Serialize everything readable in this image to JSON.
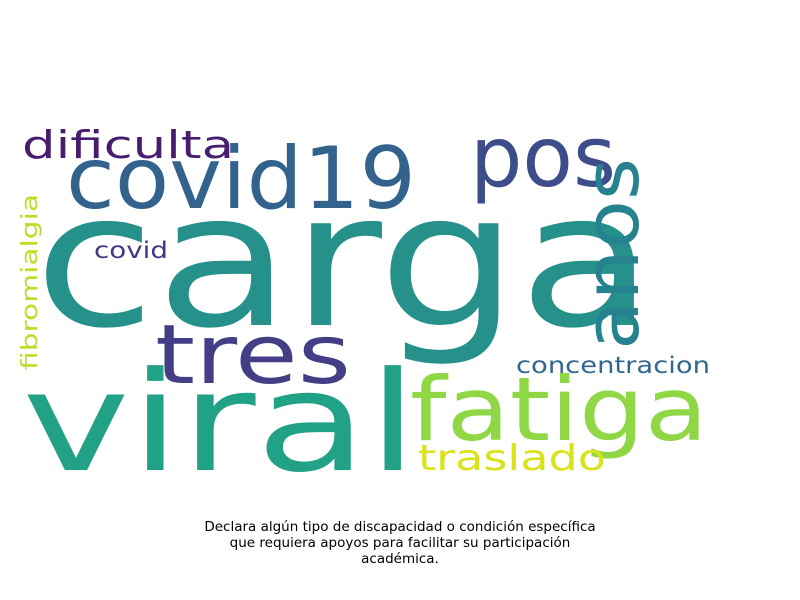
{
  "wordcloud": {
    "words": [
      {
        "text": "carga",
        "color": "#26918a"
      },
      {
        "text": "viral",
        "color": "#21a185"
      },
      {
        "text": "covid19",
        "color": "#33628d"
      },
      {
        "text": "pos",
        "color": "#3d4d8a"
      },
      {
        "text": "fatiga",
        "color": "#8fd744"
      },
      {
        "text": "tres",
        "color": "#433e85"
      },
      {
        "text": "anos",
        "color": "#26828e"
      },
      {
        "text": "dificulta",
        "color": "#481d6f"
      },
      {
        "text": "traslado",
        "color": "#dae319"
      },
      {
        "text": "concentracion",
        "color": "#31688e"
      },
      {
        "text": "covid",
        "color": "#453882"
      },
      {
        "text": "fibromialgia",
        "color": "#bade28"
      }
    ]
  },
  "caption": {
    "line1": "Declara algún tipo de discapacidad o condición específica",
    "line2": "que requiera apoyos para facilitar su participación",
    "line3": "académica."
  }
}
